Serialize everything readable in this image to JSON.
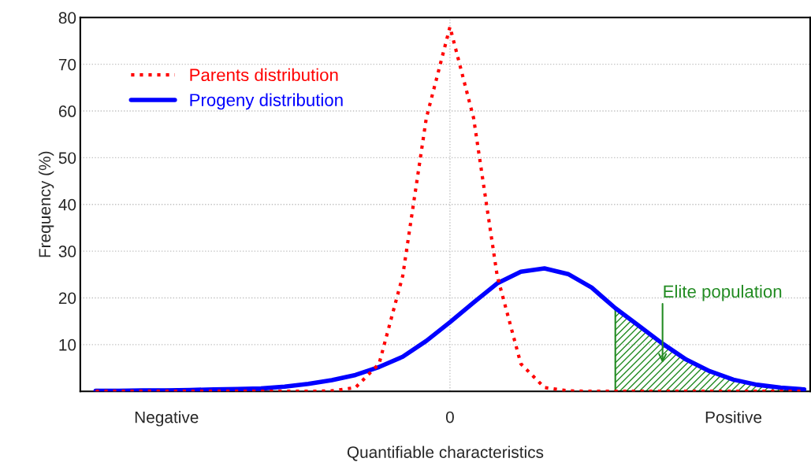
{
  "chart_data": {
    "type": "line",
    "xlabel": "Quantifiable characteristics",
    "ylabel": "Frequency (%)",
    "categories": [
      null,
      null,
      null,
      "Negative",
      null,
      null,
      null,
      null,
      null,
      null,
      null,
      null,
      null,
      null,
      null,
      "0",
      null,
      null,
      null,
      null,
      null,
      null,
      null,
      null,
      null,
      null,
      null,
      "Positive",
      null,
      null,
      null
    ],
    "ylim": [
      0,
      80
    ],
    "yticks": [
      10,
      20,
      30,
      40,
      50,
      60,
      70,
      80
    ],
    "grid": "y",
    "legend": "top left",
    "ref_lines": [
      {
        "axis": "x",
        "value": "0",
        "color": "#c0c0c0",
        "line_style": "dotted"
      }
    ],
    "series": [
      {
        "name": "Parents distribution",
        "color": "#ff0000",
        "line_style": "dotted",
        "values": [
          0,
          0,
          0,
          0,
          0,
          0,
          0,
          0,
          0,
          0,
          0.1,
          0.8,
          5.9,
          24.7,
          58.5,
          78,
          58.5,
          24.7,
          5.9,
          0.8,
          0.1,
          0,
          0,
          0,
          0,
          0,
          0,
          0,
          0,
          0,
          0
        ]
      },
      {
        "name": "Progeny distribution",
        "color": "#0000ff",
        "line_style": "solid",
        "values": [
          0.1,
          0.1,
          0.2,
          0.2,
          0.3,
          0.4,
          0.5,
          0.6,
          1.0,
          1.6,
          2.4,
          3.5,
          5.2,
          7.4,
          10.8,
          14.8,
          19.0,
          23.1,
          25.6,
          26.3,
          25.1,
          22.2,
          17.8,
          14.0,
          10.2,
          6.8,
          4.3,
          2.5,
          1.4,
          0.8,
          0.4
        ]
      },
      {
        "type": "area",
        "color": "#228b22",
        "values": [
          null,
          null,
          null,
          null,
          null,
          null,
          null,
          null,
          null,
          null,
          null,
          null,
          null,
          null,
          null,
          null,
          null,
          null,
          null,
          null,
          null,
          null,
          17.8,
          14.0,
          10.2,
          6.8,
          4.3,
          2.5,
          1.4,
          0.8,
          0.4
        ]
      }
    ],
    "annotations": [
      "Elite population"
    ]
  }
}
